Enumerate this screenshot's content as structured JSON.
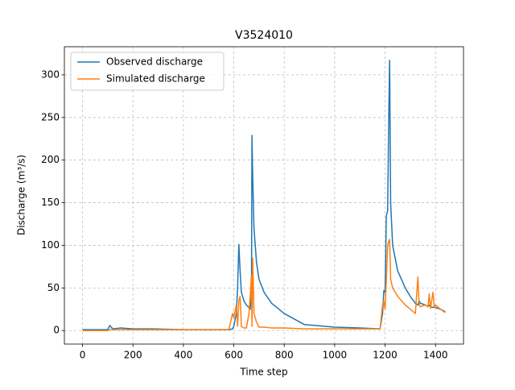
{
  "chart_data": {
    "type": "line",
    "title": "V3524010",
    "x_label": "Time step",
    "y_label": "Discharge (m³/s)",
    "x": [
      0,
      100,
      108,
      120,
      150,
      200,
      250,
      280,
      400,
      500,
      580,
      595,
      600,
      610,
      615,
      620,
      625,
      630,
      640,
      650,
      660,
      665,
      670,
      672,
      675,
      680,
      690,
      700,
      720,
      750,
      800,
      880,
      1000,
      1100,
      1180,
      1190,
      1195,
      1200,
      1205,
      1210,
      1215,
      1218,
      1222,
      1230,
      1250,
      1280,
      1300,
      1320,
      1330,
      1335,
      1340,
      1360,
      1370,
      1375,
      1380,
      1390,
      1395,
      1400,
      1420,
      1439
    ],
    "series": [
      {
        "name": "Observed discharge",
        "color": "#1f77b4",
        "values": [
          1,
          1,
          6,
          2,
          3,
          2,
          2,
          2,
          1,
          1,
          1,
          2,
          5,
          20,
          50,
          101,
          70,
          45,
          35,
          30,
          27,
          25,
          40,
          229,
          180,
          120,
          80,
          60,
          45,
          32,
          20,
          7,
          4,
          3,
          2,
          20,
          47,
          45,
          135,
          140,
          260,
          317,
          150,
          100,
          70,
          50,
          40,
          32,
          30,
          35,
          32,
          30,
          28,
          30,
          28,
          27,
          28,
          27,
          25,
          22
        ]
      },
      {
        "name": "Simulated discharge",
        "color": "#ff7f0e",
        "values": [
          0,
          0,
          1,
          1,
          1,
          1,
          1,
          1,
          1,
          1,
          1,
          20,
          15,
          30,
          5,
          35,
          40,
          5,
          3,
          3,
          20,
          40,
          65,
          5,
          85,
          20,
          10,
          4,
          4,
          3,
          3,
          2,
          2,
          2,
          2,
          30,
          35,
          25,
          60,
          100,
          105,
          107,
          60,
          50,
          40,
          30,
          25,
          20,
          63,
          30,
          28,
          30,
          28,
          43,
          26,
          45,
          27,
          30,
          25,
          21
        ]
      }
    ],
    "xlim": [
      -71.95,
      1510.95
    ],
    "xticks": [
      0,
      200,
      400,
      600,
      800,
      1000,
      1200,
      1400
    ],
    "ylim": [
      -15.85,
      333
    ],
    "yticks": [
      0,
      50,
      100,
      150,
      200,
      250,
      300
    ],
    "grid": true,
    "legend": "upper-left"
  }
}
